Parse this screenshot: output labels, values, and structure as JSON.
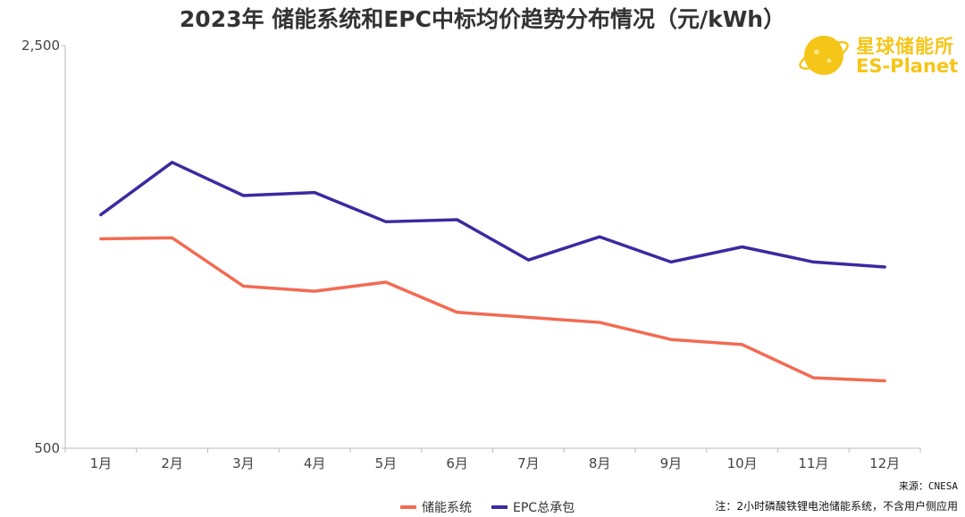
{
  "chart_data": {
    "type": "line",
    "title": "2023年 储能系统和EPC中标均价趋势分布情况（元/kWh）",
    "categories": [
      "1月",
      "2月",
      "3月",
      "4月",
      "5月",
      "6月",
      "7月",
      "8月",
      "9月",
      "10月",
      "11月",
      "12月"
    ],
    "series": [
      {
        "name": "储能系统",
        "color": "#f26b52",
        "values": [
          1540,
          1545,
          1305,
          1280,
          1325,
          1175,
          1150,
          1125,
          1040,
          1015,
          850,
          835
        ]
      },
      {
        "name": "EPC总承包",
        "color": "#3b2aa0",
        "values": [
          1660,
          1920,
          1755,
          1770,
          1625,
          1635,
          1435,
          1550,
          1425,
          1500,
          1425,
          1400
        ]
      }
    ],
    "yticks": [
      "2,500",
      "500"
    ],
    "ylim": [
      500,
      2500
    ],
    "grid": false,
    "legend_position": "bottom"
  },
  "source": "来源：CNESA",
  "footnote": "注：2小时磷酸铁锂电池储能系统，不含用户侧应用",
  "logo": {
    "text_cn": "星球储能所",
    "text_en": "ES-Planet",
    "color": "#f5c518"
  }
}
